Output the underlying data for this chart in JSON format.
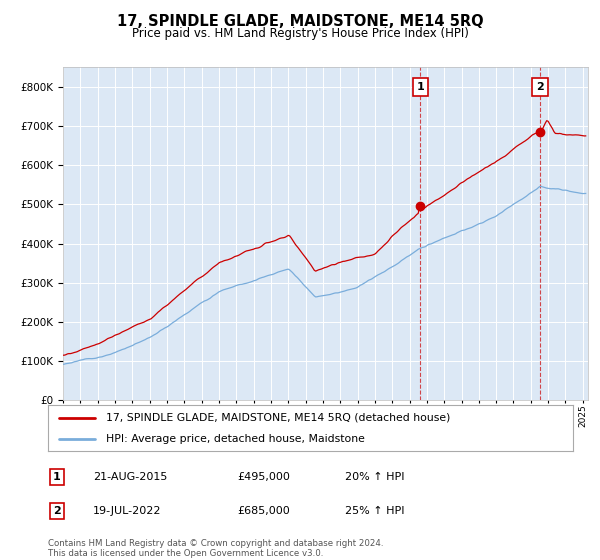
{
  "title": "17, SPINDLE GLADE, MAIDSTONE, ME14 5RQ",
  "subtitle": "Price paid vs. HM Land Registry's House Price Index (HPI)",
  "background_color": "#ffffff",
  "plot_bg_color": "#dce8f5",
  "grid_color": "#ffffff",
  "sale1_year": 2015.62,
  "sale1_price": 495000,
  "sale2_year": 2022.54,
  "sale2_price": 685000,
  "legend_entry1": "17, SPINDLE GLADE, MAIDSTONE, ME14 5RQ (detached house)",
  "legend_entry2": "HPI: Average price, detached house, Maidstone",
  "table_row1": [
    "1",
    "21-AUG-2015",
    "£495,000",
    "20% ↑ HPI"
  ],
  "table_row2": [
    "2",
    "19-JUL-2022",
    "£685,000",
    "25% ↑ HPI"
  ],
  "footer": "Contains HM Land Registry data © Crown copyright and database right 2024.\nThis data is licensed under the Open Government Licence v3.0.",
  "ylim": [
    0,
    850000
  ],
  "xlim_start": 1995.0,
  "xlim_end": 2025.3,
  "red_color": "#cc0000",
  "blue_color": "#7aaddb"
}
